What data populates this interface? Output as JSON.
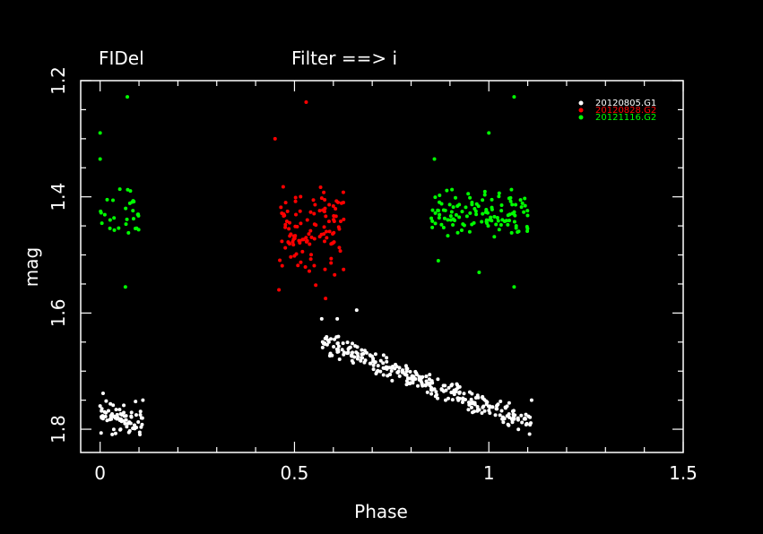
{
  "chart_data": {
    "type": "scatter",
    "title_left": "FIDel",
    "title_center": "Filter ==> i",
    "xlabel": "Phase",
    "ylabel": "mag",
    "xlim": [
      -0.05,
      1.5
    ],
    "ylim": [
      1.84,
      1.2
    ],
    "y_inverted": true,
    "grid": false,
    "legend_placement": "top-right",
    "x_ticks": [
      "0",
      "0.5",
      "1",
      "1.5"
    ],
    "y_ticks": [
      "1.2",
      "1.4",
      "1.6",
      "1.8"
    ],
    "colors": {
      "background": "#000000",
      "axes": "#ffffff",
      "G1": "#ffffff",
      "G2_red": "#ff0000",
      "G2_green": "#00ff00"
    },
    "series": [
      {
        "name": "20120805.G1",
        "color": "#ffffff",
        "segments": [
          {
            "x_range": [
              0.0,
              0.11
            ],
            "y_start": 1.775,
            "y_end": 1.79,
            "spread": 0.02,
            "n": 70,
            "seed": 11
          },
          {
            "x_range": [
              0.57,
              1.11
            ],
            "y_start": 1.65,
            "y_end": 1.79,
            "spread": 0.013,
            "n": 300,
            "seed": 23
          }
        ],
        "outliers": [
          [
            0.11,
            1.75
          ],
          [
            0.57,
            1.61
          ],
          [
            0.61,
            1.61
          ],
          [
            0.66,
            1.595
          ],
          [
            1.11,
            1.75
          ],
          [
            0.0,
            1.76
          ]
        ]
      },
      {
        "name": "20120828.G2",
        "color": "#ff0000",
        "segments": [
          {
            "x_range": [
              0.46,
              0.63
            ],
            "y_center": 1.455,
            "spread": 0.05,
            "n": 115,
            "seed": 37
          }
        ],
        "outliers": [
          [
            0.45,
            1.3
          ],
          [
            0.53,
            1.237
          ],
          [
            0.46,
            1.56
          ],
          [
            0.58,
            1.575
          ]
        ]
      },
      {
        "name": "20121116.G2",
        "color": "#00ff00",
        "segments": [
          {
            "x_range": [
              0.0,
              0.1
            ],
            "y_center": 1.43,
            "spread": 0.03,
            "n": 30,
            "seed": 41
          },
          {
            "x_range": [
              0.85,
              1.1
            ],
            "y_center": 1.43,
            "spread": 0.03,
            "n": 120,
            "seed": 53
          }
        ],
        "outliers": [
          [
            0.07,
            1.228
          ],
          [
            0.065,
            1.555
          ],
          [
            0.0,
            1.29
          ],
          [
            0.0,
            1.335
          ],
          [
            1.065,
            1.228
          ],
          [
            1.065,
            1.555
          ],
          [
            1.0,
            1.29
          ],
          [
            0.86,
            1.335
          ],
          [
            0.87,
            1.51
          ],
          [
            0.975,
            1.53
          ]
        ]
      }
    ]
  }
}
